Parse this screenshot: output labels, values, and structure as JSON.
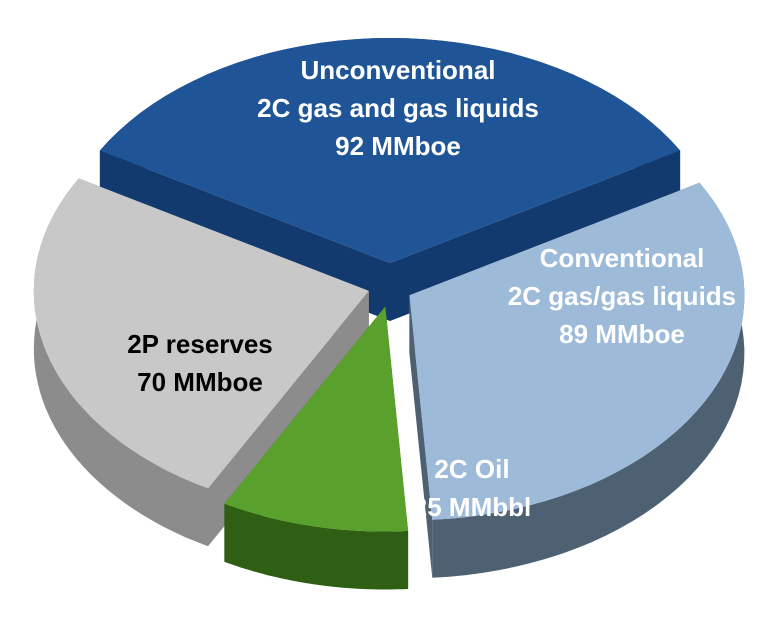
{
  "chart_data": {
    "type": "pie3d",
    "categories": [
      [
        "Unconventional",
        "2C gas and gas liquids"
      ],
      [
        "Conventional",
        "2C gas/gas liquids"
      ],
      [
        "2C Oil"
      ],
      [
        "2P reserves"
      ]
    ],
    "values": [
      92,
      89,
      25,
      70
    ],
    "value_labels": [
      "92 MMboe",
      "89 MMboe",
      "25 MMbbl",
      "70 MMboe"
    ],
    "colors": [
      "#1f5596",
      "#9dbad8",
      "#5aa02c",
      "#c8c8c8"
    ],
    "side_colors": [
      "#123a6e",
      "#4e6173",
      "#2f5f14",
      "#8c8c8c"
    ],
    "label_colors": [
      "#ffffff",
      "#ffffff",
      "#ffffff",
      "#000000"
    ]
  }
}
